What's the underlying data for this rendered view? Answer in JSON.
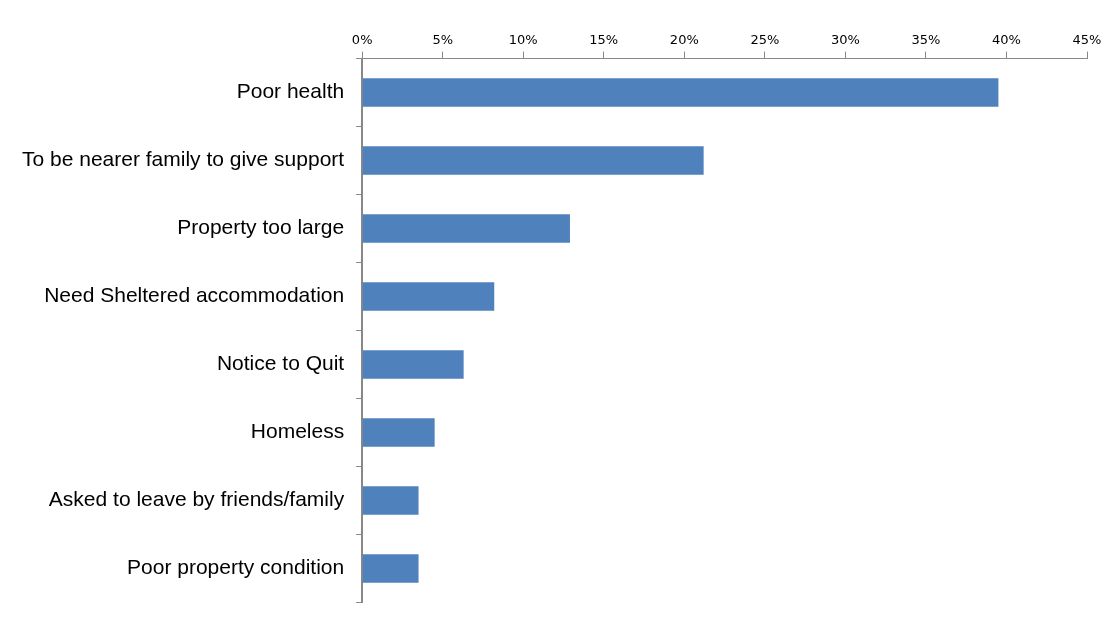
{
  "chart_data": {
    "type": "bar",
    "orientation": "horizontal",
    "categories": [
      "Poor health",
      "To be nearer family to give support",
      "Property too large",
      "Need Sheltered accommodation",
      "Notice to Quit",
      "Homeless",
      "Asked to leave by friends/family",
      "Poor property condition"
    ],
    "values": [
      39.5,
      21.2,
      12.9,
      8.2,
      6.3,
      4.5,
      3.5,
      3.5
    ],
    "color": "#4f81bd",
    "xlim": [
      0,
      45
    ],
    "xticks": [
      {
        "value": 0,
        "label": "0%"
      },
      {
        "value": 5,
        "label": "5%"
      },
      {
        "value": 10,
        "label": "10%"
      },
      {
        "value": 15,
        "label": "15%"
      },
      {
        "value": 20,
        "label": "20%"
      },
      {
        "value": 25,
        "label": "25%"
      },
      {
        "value": 30,
        "label": "30%"
      },
      {
        "value": 35,
        "label": "35%"
      },
      {
        "value": 40,
        "label": "40%"
      },
      {
        "value": 45,
        "label": "45%"
      }
    ],
    "grid": false,
    "legend": false
  }
}
